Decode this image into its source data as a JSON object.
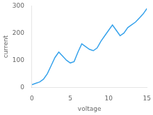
{
  "chart_data": {
    "type": "line",
    "xlabel": "voltage",
    "ylabel": "current",
    "x": [
      0,
      0.5,
      1.0,
      1.5,
      2.0,
      2.5,
      3.0,
      3.5,
      4.0,
      4.5,
      5.0,
      5.5,
      6.0,
      6.5,
      7.0,
      7.5,
      8.0,
      8.5,
      9.0,
      9.5,
      10.0,
      10.5,
      11.0,
      11.5,
      12.0,
      12.5,
      13.0,
      13.5,
      14.0,
      14.5,
      15.0
    ],
    "values": [
      10,
      15,
      20,
      30,
      50,
      80,
      110,
      130,
      115,
      100,
      90,
      95,
      130,
      160,
      150,
      140,
      135,
      145,
      170,
      190,
      210,
      230,
      210,
      190,
      200,
      220,
      230,
      240,
      255,
      270,
      290
    ],
    "xlim": [
      0,
      15
    ],
    "ylim": [
      0,
      300
    ],
    "xticks": [
      0,
      5,
      10,
      15
    ],
    "yticks": [
      0,
      100,
      200,
      300
    ],
    "grid": false
  }
}
